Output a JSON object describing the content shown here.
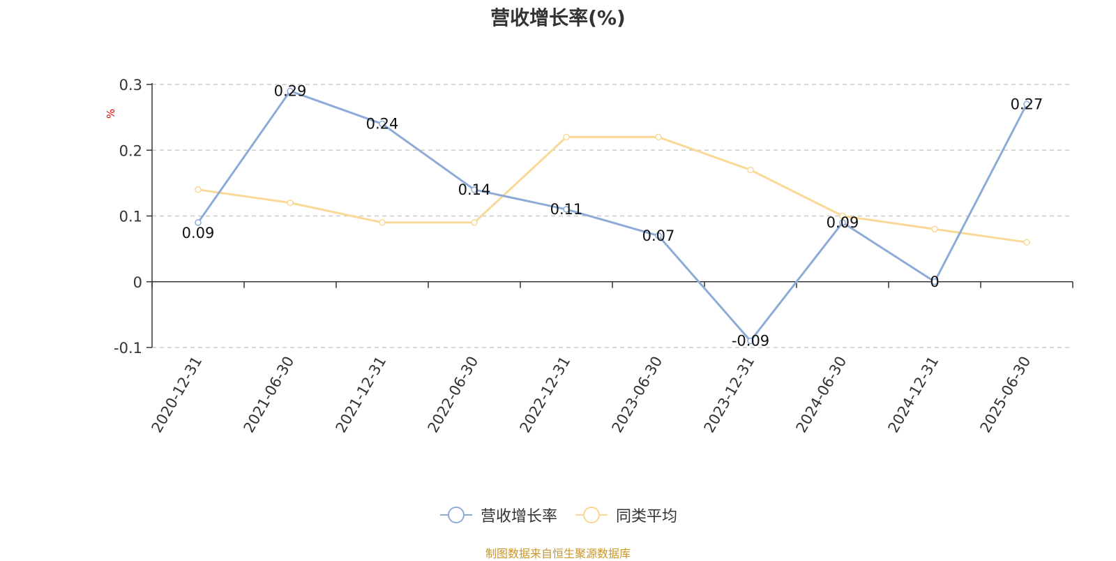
{
  "chart_data": {
    "type": "line",
    "title": "营收增长率(%)",
    "ylabel": "%",
    "categories": [
      "2020-12-31",
      "2021-06-30",
      "2021-12-31",
      "2022-06-30",
      "2022-12-31",
      "2023-06-30",
      "2023-12-31",
      "2024-06-30",
      "2024-12-31",
      "2025-06-30"
    ],
    "series": [
      {
        "name": "营收增长率",
        "color": "#8eabd8",
        "values": [
          0.09,
          0.29,
          0.24,
          0.14,
          0.11,
          0.07,
          -0.09,
          0.09,
          0,
          0.27
        ],
        "labels": [
          "0.09",
          "0.29",
          "0.24",
          "0.14",
          "0.11",
          "0.07",
          "-0.09",
          "0.09",
          "0",
          "0.27"
        ]
      },
      {
        "name": "同类平均",
        "color": "#fad896",
        "values": [
          0.14,
          0.12,
          0.09,
          0.09,
          0.22,
          0.22,
          0.17,
          0.1,
          0.08,
          0.06
        ]
      }
    ],
    "ylim": [
      -0.1,
      0.3
    ],
    "yticks": [
      "-0.1",
      "0",
      "0.1",
      "0.2",
      "0.3"
    ],
    "grid": true,
    "legend_position": "bottom-center"
  },
  "footer": "制图数据来自恒生聚源数据库"
}
